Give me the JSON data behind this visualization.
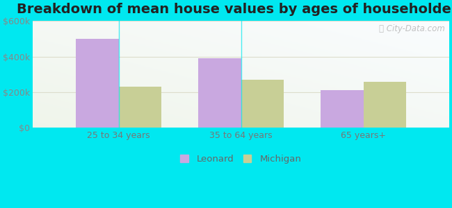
{
  "title": "Breakdown of mean house values by ages of householders",
  "categories": [
    "25 to 34 years",
    "35 to 64 years",
    "65 years+"
  ],
  "leonard_values": [
    500000,
    390000,
    210000
  ],
  "michigan_values": [
    230000,
    270000,
    260000
  ],
  "leonard_color": "#c9a8e0",
  "michigan_color": "#c8cf96",
  "bar_width": 0.35,
  "ylim": [
    0,
    600000
  ],
  "yticks": [
    0,
    200000,
    400000,
    600000
  ],
  "ytick_labels": [
    "$0",
    "$200k",
    "$400k",
    "$600k"
  ],
  "legend_labels": [
    "Leonard",
    "Michigan"
  ],
  "watermark": "City-Data.com",
  "bg_outer": "#00e8f0",
  "title_fontsize": 14,
  "tick_fontsize": 9
}
